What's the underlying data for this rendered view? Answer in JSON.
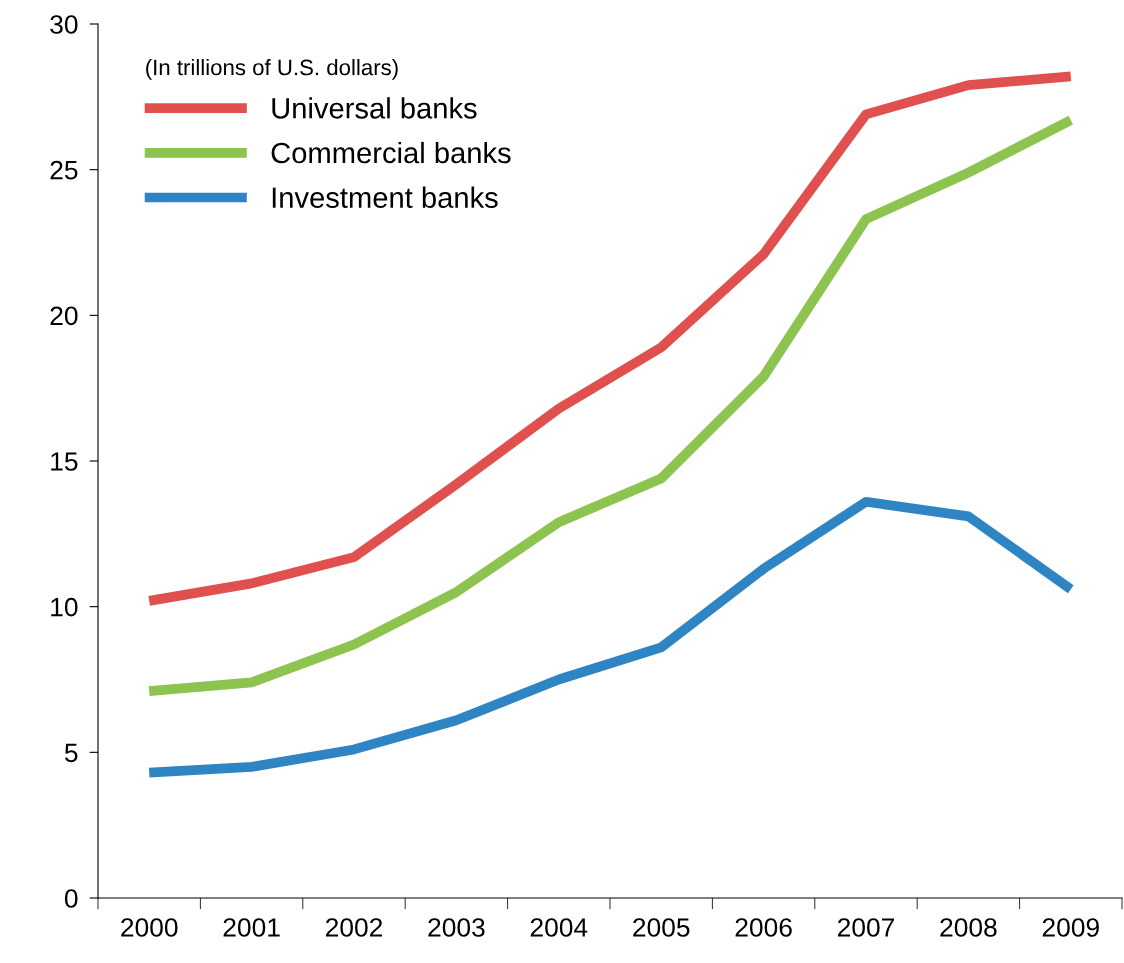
{
  "chart_data": {
    "type": "line",
    "legend_title": "(In trillions of U.S. dollars)",
    "categories": [
      "2000",
      "2001",
      "2002",
      "2003",
      "2004",
      "2005",
      "2006",
      "2007",
      "2008",
      "2009"
    ],
    "series": [
      {
        "name": "Universal banks",
        "color": "#e0504f",
        "values": [
          10.2,
          10.8,
          11.7,
          14.2,
          16.8,
          18.9,
          22.1,
          26.9,
          27.9,
          28.2
        ]
      },
      {
        "name": "Commercial banks",
        "color": "#8dc34f",
        "values": [
          7.1,
          7.4,
          8.7,
          10.5,
          12.9,
          14.4,
          17.9,
          23.3,
          24.9,
          26.7
        ]
      },
      {
        "name": "Investment banks",
        "color": "#2f85c4",
        "values": [
          4.3,
          4.5,
          5.1,
          6.1,
          7.5,
          8.6,
          11.3,
          13.6,
          13.1,
          10.6
        ]
      }
    ],
    "ylim": [
      0,
      30
    ],
    "yticks": [
      0,
      5,
      10,
      15,
      20,
      25,
      30
    ],
    "grid": false,
    "legend": "top left",
    "marker": "none",
    "line_style": "solid"
  }
}
